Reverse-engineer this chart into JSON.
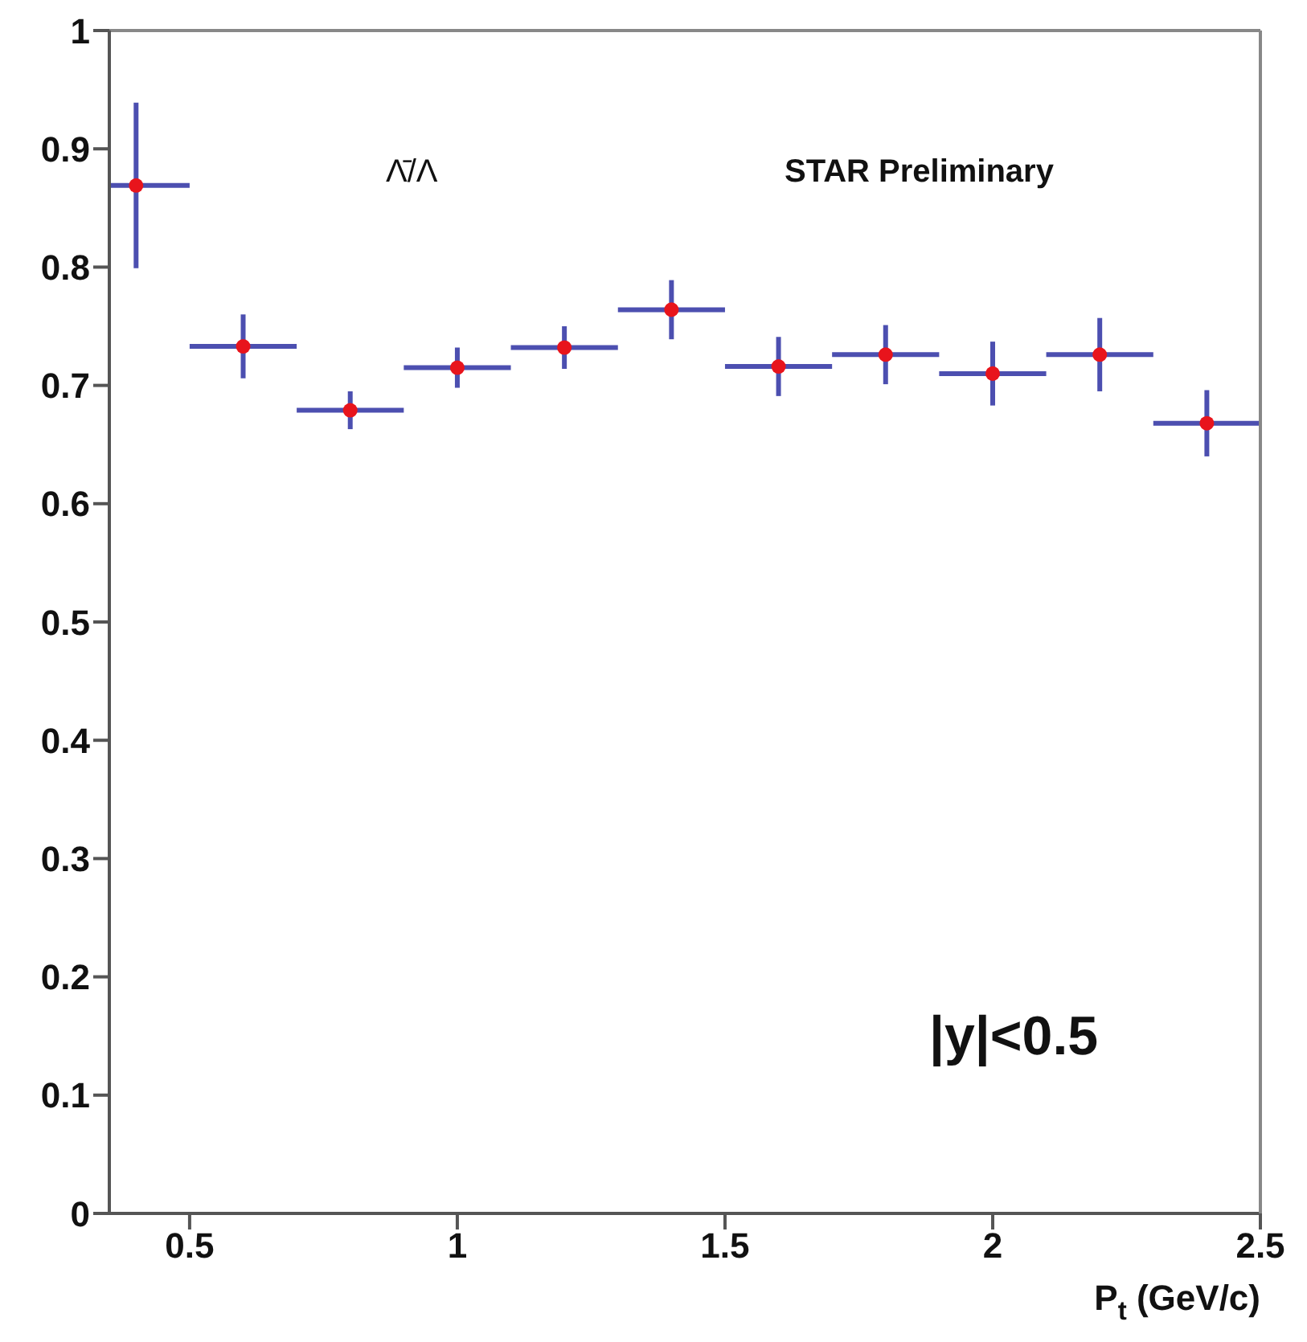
{
  "chart_data": {
    "type": "scatter",
    "xlabel": "P$_{t}$  (GeV/c)",
    "annotations": [
      "Λ̄/Λ",
      "STAR Preliminary",
      "|y|<0.5"
    ],
    "x": [
      0.4,
      0.6,
      0.8,
      1.0,
      1.2,
      1.4,
      1.6,
      1.8,
      2.0,
      2.2,
      2.4
    ],
    "series": [
      {
        "color": "#e8141c",
        "values": [
          0.869,
          0.733,
          0.679,
          0.715,
          0.732,
          0.764,
          0.716,
          0.726,
          0.71,
          0.726,
          0.668
        ],
        "errors": [
          0.07,
          0.027,
          0.016,
          0.017,
          0.018,
          0.025,
          0.025,
          0.025,
          0.027,
          0.031,
          0.028
        ],
        "xerrors": [
          [
            0.35,
            0.5
          ],
          0.1,
          0.1,
          0.1,
          0.1,
          0.1,
          0.1,
          0.1,
          0.1,
          0.1,
          0.1
        ]
      }
    ],
    "xlim": [
      0.35,
      2.5
    ],
    "xticks": [
      0.5,
      1,
      1.5,
      2,
      2.5
    ],
    "ylim": [
      0,
      1
    ],
    "yticks": [
      0,
      0.1,
      0.2,
      0.3,
      0.4,
      0.5,
      0.6,
      0.7,
      0.8,
      0.9,
      1
    ],
    "grid": false,
    "legend": false,
    "marker": "circle"
  }
}
